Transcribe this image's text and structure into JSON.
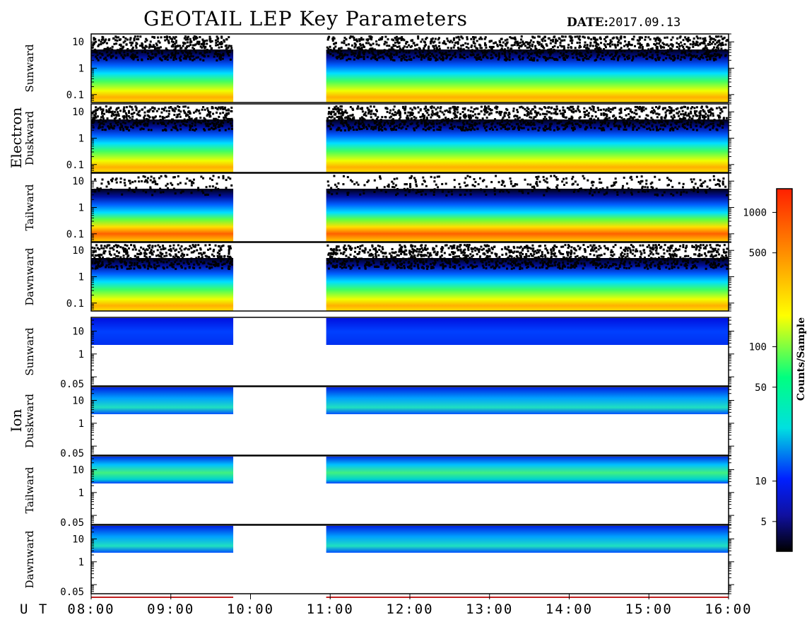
{
  "header": {
    "title": "GEOTAIL LEP Key Parameters",
    "date_label": "DATE:",
    "date_value": "2017.09.13"
  },
  "chart_data": {
    "type": "heatmap",
    "title": "GEOTAIL LEP Key Parameters",
    "x_axis": {
      "label": "U T",
      "range": [
        "08:00",
        "16:00"
      ],
      "ticks": [
        "08:00",
        "09:00",
        "10:00",
        "11:00",
        "12:00",
        "13:00",
        "14:00",
        "15:00",
        "16:00"
      ],
      "data_gap": [
        "09:47",
        "10:57"
      ]
    },
    "groups": [
      {
        "name": "Electron",
        "panels": [
          {
            "label": "Sunward",
            "y_ticks": [
              "10",
              "1",
              "0.1"
            ],
            "y_range": [
              0.05,
              20
            ],
            "y_scale": "log"
          },
          {
            "label": "Duskward",
            "y_ticks": [
              "10",
              "1",
              "0.1"
            ],
            "y_range": [
              0.05,
              20
            ],
            "y_scale": "log"
          },
          {
            "label": "Tailward",
            "y_ticks": [
              "10",
              "1",
              "0.1"
            ],
            "y_range": [
              0.05,
              20
            ],
            "y_scale": "log"
          },
          {
            "label": "Dawnward",
            "y_ticks": [
              "10",
              "1",
              "0.1"
            ],
            "y_range": [
              0.05,
              20
            ],
            "y_scale": "log"
          }
        ]
      },
      {
        "name": "Ion",
        "panels": [
          {
            "label": "Sunward",
            "y_ticks": [
              "10",
              "1",
              "0.05"
            ],
            "y_range": [
              0.04,
              40
            ],
            "y_scale": "log"
          },
          {
            "label": "Duskward",
            "y_ticks": [
              "10",
              "1",
              "0.05"
            ],
            "y_range": [
              0.04,
              40
            ],
            "y_scale": "log"
          },
          {
            "label": "Tailward",
            "y_ticks": [
              "10",
              "1",
              "0.05"
            ],
            "y_range": [
              0.04,
              40
            ],
            "y_scale": "log"
          },
          {
            "label": "Dawnward",
            "y_ticks": [
              "10",
              "1",
              "0.05"
            ],
            "y_range": [
              0.04,
              40
            ],
            "y_scale": "log"
          }
        ]
      }
    ],
    "colorbar": {
      "label": "Counts/Sample",
      "scale": "log",
      "range": [
        3,
        1500
      ],
      "ticks": [
        {
          "value": 1000,
          "label": "1000"
        },
        {
          "value": 500,
          "label": "500"
        },
        {
          "value": 100,
          "label": "100"
        },
        {
          "value": 50,
          "label": "50"
        },
        {
          "value": 10,
          "label": "10"
        },
        {
          "value": 5,
          "label": "5"
        }
      ]
    },
    "colors": {
      "low": "#000000",
      "mid_low": "#0020ff",
      "mid": "#00e0e0",
      "mid_high": "#ffff00",
      "high": "#ff2000"
    }
  }
}
